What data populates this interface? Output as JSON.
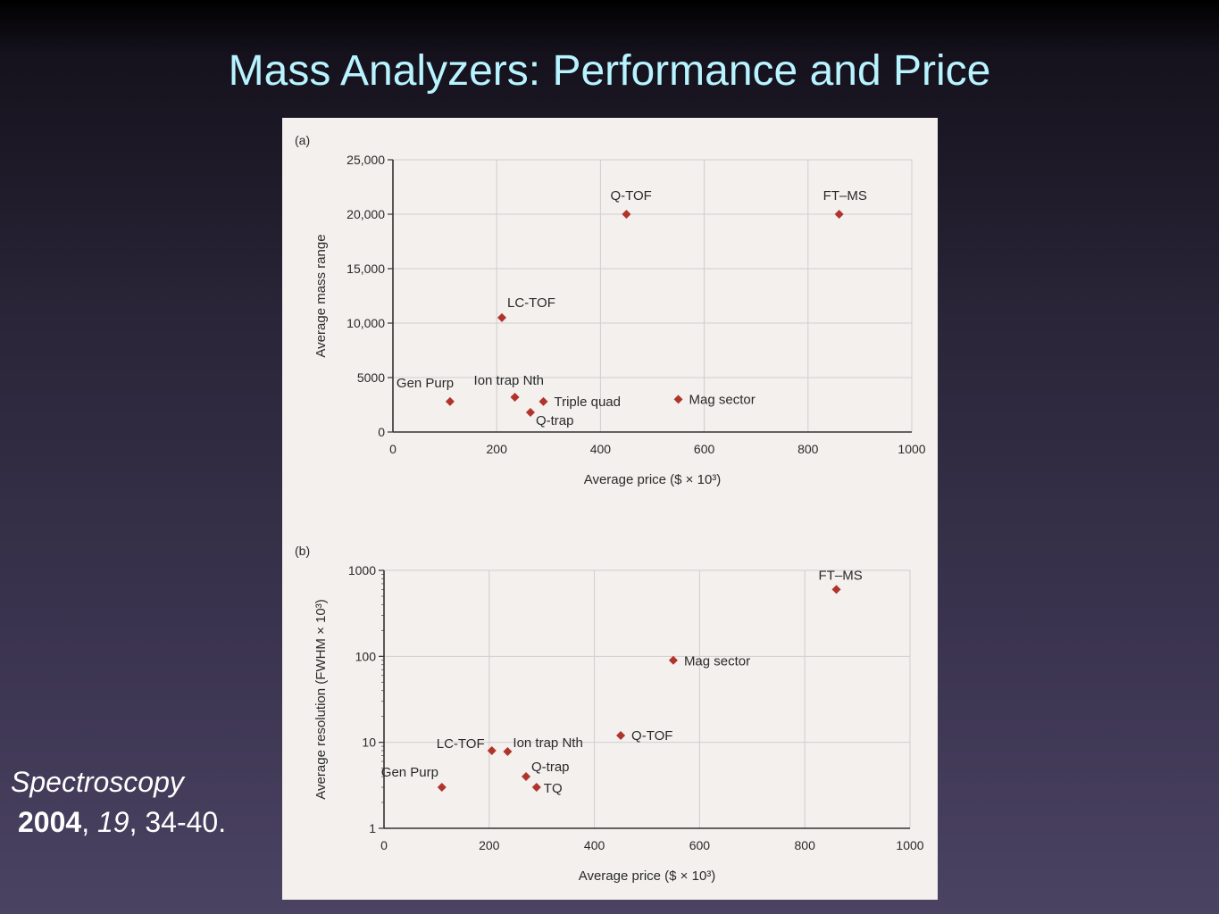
{
  "slide": {
    "title": "Mass Analyzers: Performance and Price",
    "citation_journal": "Spectroscopy",
    "citation_year": "2004",
    "citation_volume": "19",
    "citation_pages": "34-40."
  },
  "colors": {
    "marker": "#b0332c",
    "title_text": "#b8f4ff",
    "figure_bg": "#f3f0ed",
    "grid": "#cfcfcf"
  },
  "chart_data": [
    {
      "panel_label": "(a)",
      "type": "scatter",
      "xlabel": "Average price ($ × 10³)",
      "ylabel": "Average mass range",
      "xlim": [
        0,
        1000
      ],
      "ylim": [
        0,
        25000
      ],
      "y_scale": "linear",
      "x_ticks": [
        0,
        200,
        400,
        600,
        800,
        1000
      ],
      "x_tick_labels": [
        "0",
        "200",
        "400",
        "600",
        "800",
        "1000"
      ],
      "y_ticks": [
        0,
        5000,
        10000,
        15000,
        20000,
        25000
      ],
      "y_tick_labels": [
        "0",
        "5000",
        "10,000",
        "15,000",
        "20,000",
        "25,000"
      ],
      "grid": true,
      "points": [
        {
          "label": "Gen Purp",
          "x": 110,
          "y": 2800
        },
        {
          "label": "LC-TOF",
          "x": 210,
          "y": 10500
        },
        {
          "label": "Ion trap Nth",
          "x": 235,
          "y": 3200
        },
        {
          "label": "Q-trap",
          "x": 265,
          "y": 1800
        },
        {
          "label": "Triple quad",
          "x": 290,
          "y": 2800
        },
        {
          "label": "Q-TOF",
          "x": 450,
          "y": 20000
        },
        {
          "label": "Mag sector",
          "x": 550,
          "y": 3000
        },
        {
          "label": "FT–MS",
          "x": 860,
          "y": 20000
        }
      ]
    },
    {
      "panel_label": "(b)",
      "type": "scatter",
      "xlabel": "Average price ($ × 10³)",
      "ylabel": "Average resolution (FWHM × 10³)",
      "xlim": [
        0,
        1000
      ],
      "ylim": [
        1,
        1000
      ],
      "y_scale": "log",
      "x_ticks": [
        0,
        200,
        400,
        600,
        800,
        1000
      ],
      "x_tick_labels": [
        "0",
        "200",
        "400",
        "600",
        "800",
        "1000"
      ],
      "y_ticks": [
        1,
        10,
        100,
        1000
      ],
      "y_tick_labels": [
        "1",
        "10",
        "100",
        "1000"
      ],
      "grid": true,
      "points": [
        {
          "label": "Gen Purp",
          "x": 110,
          "y": 3
        },
        {
          "label": "LC-TOF",
          "x": 205,
          "y": 8
        },
        {
          "label": "Ion trap Nth",
          "x": 235,
          "y": 7.8
        },
        {
          "label": "Q-trap",
          "x": 270,
          "y": 4
        },
        {
          "label": "TQ",
          "x": 290,
          "y": 3
        },
        {
          "label": "Q-TOF",
          "x": 450,
          "y": 12
        },
        {
          "label": "Mag sector",
          "x": 550,
          "y": 90
        },
        {
          "label": "FT–MS",
          "x": 860,
          "y": 600
        }
      ]
    }
  ]
}
